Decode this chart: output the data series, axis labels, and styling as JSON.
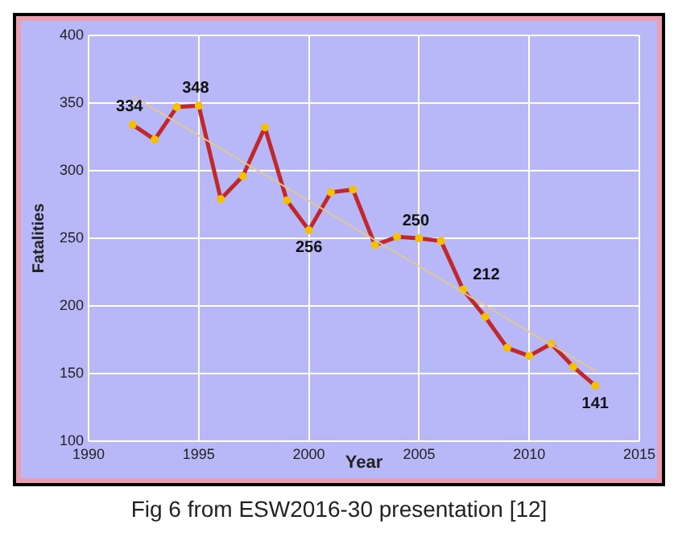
{
  "chart_data": {
    "type": "line",
    "xlabel": "Year",
    "ylabel": "Fatalities",
    "xlim": [
      1990,
      2015
    ],
    "xticks": [
      1990,
      1995,
      2000,
      2005,
      2010,
      2015
    ],
    "ylim": [
      100,
      400
    ],
    "yticks": [
      100,
      150,
      200,
      250,
      300,
      350,
      400
    ],
    "grid": true,
    "legend": false,
    "marker": "circle",
    "line_style": "solid",
    "series": [
      {
        "color": "#c0282c",
        "x": [
          1992,
          1993,
          1994,
          1995,
          1996,
          1997,
          1998,
          1999,
          2000,
          2001,
          2002,
          2003,
          2004,
          2005,
          2006,
          2007,
          2008,
          2009,
          2010,
          2011,
          2012,
          2013
        ],
        "values": [
          334,
          323,
          347,
          348,
          279,
          296,
          332,
          278,
          256,
          284,
          286,
          245,
          251,
          250,
          248,
          212,
          192,
          169,
          163,
          172,
          155,
          141
        ],
        "value_labels": [
          "334",
          null,
          null,
          "348",
          null,
          null,
          null,
          null,
          "256",
          null,
          null,
          null,
          null,
          "250",
          null,
          "212",
          null,
          null,
          null,
          null,
          null,
          "141"
        ]
      },
      {
        "type": "line",
        "color": "#e0c890",
        "marker": "none",
        "x": [
          1992,
          2013
        ],
        "values": [
          355,
          152
        ]
      }
    ],
    "annotations": [
      "Fig 6 from ESW2016-30 presentation [12]"
    ]
  }
}
